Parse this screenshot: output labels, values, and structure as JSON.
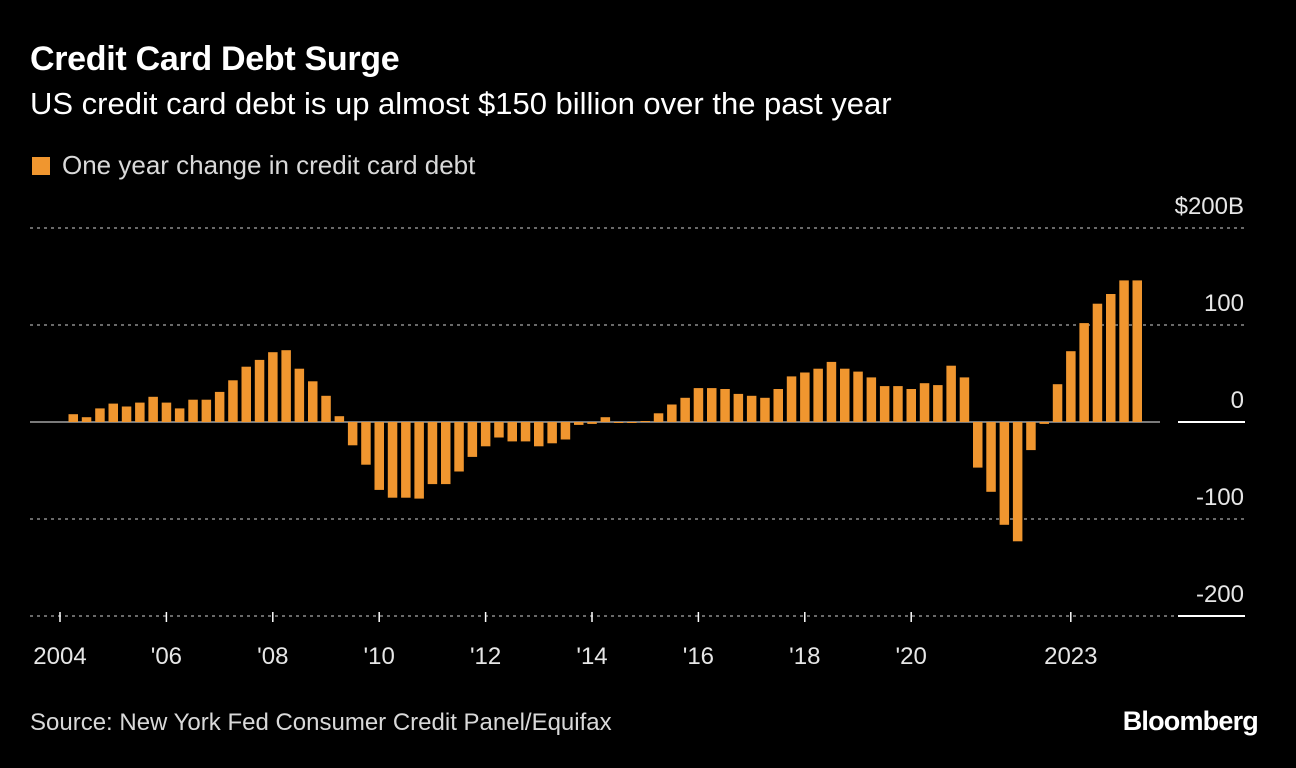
{
  "header": {
    "title": "Credit Card Debt Surge",
    "subtitle": "US credit card debt is up almost $150 billion over the past year"
  },
  "legend": {
    "label": "One year change in credit card debt",
    "color": "#F0962F"
  },
  "footer": {
    "source": "Source: New York Fed Consumer Credit Panel/Equifax",
    "logo": "Bloomberg"
  },
  "colors": {
    "bar": "#F0962F",
    "background": "#000000",
    "grid": "#8c8c8c"
  },
  "chart_data": {
    "type": "bar",
    "title": "Credit Card Debt Surge",
    "subtitle": "US credit card debt is up almost $150 billion over the past year",
    "xlabel": "",
    "ylabel": "",
    "ylim": [
      -200,
      200
    ],
    "y_ticks": [
      200,
      100,
      0,
      -100,
      -200
    ],
    "y_tick_labels": [
      "$200B",
      "100",
      "0",
      "-100",
      "-200"
    ],
    "grid": true,
    "legend_position": "top-left",
    "x_start": 2004.0,
    "x_end": 2023.75,
    "x_tick_labels": [
      {
        "year": 2004,
        "label": "2004"
      },
      {
        "year": 2006,
        "label": "'06"
      },
      {
        "year": 2008,
        "label": "'08"
      },
      {
        "year": 2010,
        "label": "'10"
      },
      {
        "year": 2012,
        "label": "'12"
      },
      {
        "year": 2014,
        "label": "'14"
      },
      {
        "year": 2016,
        "label": "'16"
      },
      {
        "year": 2018,
        "label": "'18"
      },
      {
        "year": 2020,
        "label": "'20"
      },
      {
        "year": 2023,
        "label": "2023"
      }
    ],
    "frequency": "quarterly",
    "series": [
      {
        "name": "One year change in credit card debt",
        "start": "2004-Q2",
        "values": [
          8,
          5,
          14,
          19,
          16,
          20,
          26,
          20,
          14,
          23,
          23,
          31,
          43,
          57,
          64,
          72,
          74,
          55,
          42,
          27,
          6,
          -24,
          -44,
          -70,
          -78,
          -78,
          -79,
          -64,
          -64,
          -51,
          -36,
          -25,
          -16,
          -20,
          -20,
          -25,
          -22,
          -18,
          -3,
          -2,
          5,
          -1,
          -1,
          1,
          9,
          18,
          25,
          35,
          35,
          34,
          29,
          27,
          25,
          34,
          47,
          51,
          55,
          62,
          55,
          52,
          46,
          37,
          37,
          34,
          40,
          38,
          58,
          46,
          -47,
          -72,
          -106,
          -123,
          -29,
          -2,
          39,
          73,
          102,
          122,
          132,
          146,
          146
        ]
      }
    ]
  }
}
